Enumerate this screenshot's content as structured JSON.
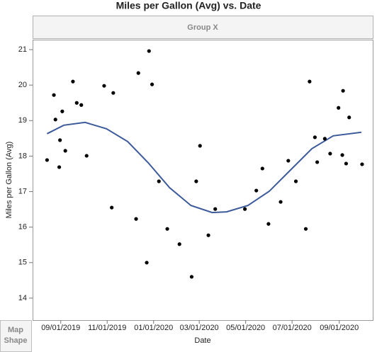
{
  "chart_data": {
    "type": "scatter",
    "title": "Miles per Gallon (Avg) vs. Date",
    "group_label": "Group X",
    "x_label": "Date",
    "y_label": "Miles per Gallon (Avg)",
    "side_panel": [
      "Map",
      "Shape"
    ],
    "point_color": "#000000",
    "x": [
      "2019-08-14",
      "2019-08-23",
      "2019-08-25",
      "2019-08-31",
      "2019-08-30",
      "2019-09-03",
      "2019-09-07",
      "2019-09-17",
      "2019-09-22",
      "2019-09-28",
      "2019-10-05",
      "2019-10-28",
      "2019-11-07",
      "2019-11-09",
      "2019-12-09",
      "2019-12-12",
      "2019-12-23",
      "2019-12-26",
      "2019-12-30",
      "2020-01-08",
      "2020-01-19",
      "2020-02-04",
      "2020-02-20",
      "2020-02-26",
      "2020-03-02",
      "2020-03-13",
      "2020-03-22",
      "2020-04-30",
      "2020-05-15",
      "2020-05-23",
      "2020-05-31",
      "2020-06-16",
      "2020-06-26",
      "2020-07-06",
      "2020-07-19",
      "2020-07-24",
      "2020-07-31",
      "2020-08-03",
      "2020-08-13",
      "2020-08-20",
      "2020-08-31",
      "2020-09-05",
      "2020-09-06",
      "2020-09-10",
      "2020-09-14",
      "2020-10-01"
    ],
    "values": [
      17.89,
      19.72,
      19.03,
      18.45,
      17.69,
      19.26,
      18.15,
      20.1,
      19.5,
      19.44,
      18.01,
      19.98,
      16.55,
      19.78,
      16.23,
      20.34,
      15.0,
      20.96,
      20.02,
      17.29,
      15.95,
      15.52,
      14.6,
      17.29,
      18.29,
      15.77,
      16.51,
      16.51,
      17.03,
      17.65,
      16.09,
      16.71,
      17.87,
      17.29,
      15.95,
      20.1,
      18.53,
      17.83,
      18.49,
      18.07,
      19.36,
      18.03,
      19.84,
      17.79,
      19.09,
      17.77
    ],
    "smoother": {
      "color": "#3c5a9a",
      "x": [
        "2019-08-14",
        "2019-09-05",
        "2019-10-03",
        "2019-10-31",
        "2019-11-28",
        "2019-12-25",
        "2020-01-22",
        "2020-02-19",
        "2020-03-18",
        "2020-04-06",
        "2020-05-04",
        "2020-06-01",
        "2020-06-29",
        "2020-07-27",
        "2020-08-24",
        "2020-09-30"
      ],
      "values": [
        18.63,
        18.87,
        18.95,
        18.77,
        18.41,
        17.81,
        17.11,
        16.61,
        16.41,
        16.43,
        16.61,
        17.01,
        17.61,
        18.21,
        18.57,
        18.67
      ]
    },
    "xlim": [
      "2019-07-26",
      "2020-10-15"
    ],
    "xticks": [
      {
        "value": "2019-09-01",
        "label": "09/01/2019"
      },
      {
        "value": "2019-11-01",
        "label": "11/01/2019"
      },
      {
        "value": "2020-01-01",
        "label": "01/01/2020"
      },
      {
        "value": "2020-03-01",
        "label": "03/01/2020"
      },
      {
        "value": "2020-05-01",
        "label": "05/01/2020"
      },
      {
        "value": "2020-07-01",
        "label": "07/01/2020"
      },
      {
        "value": "2020-09-01",
        "label": "09/01/2020"
      }
    ],
    "ylim": [
      13.38,
      21.28
    ],
    "yticks": [
      14,
      15,
      16,
      17,
      18,
      19,
      20,
      21
    ]
  }
}
